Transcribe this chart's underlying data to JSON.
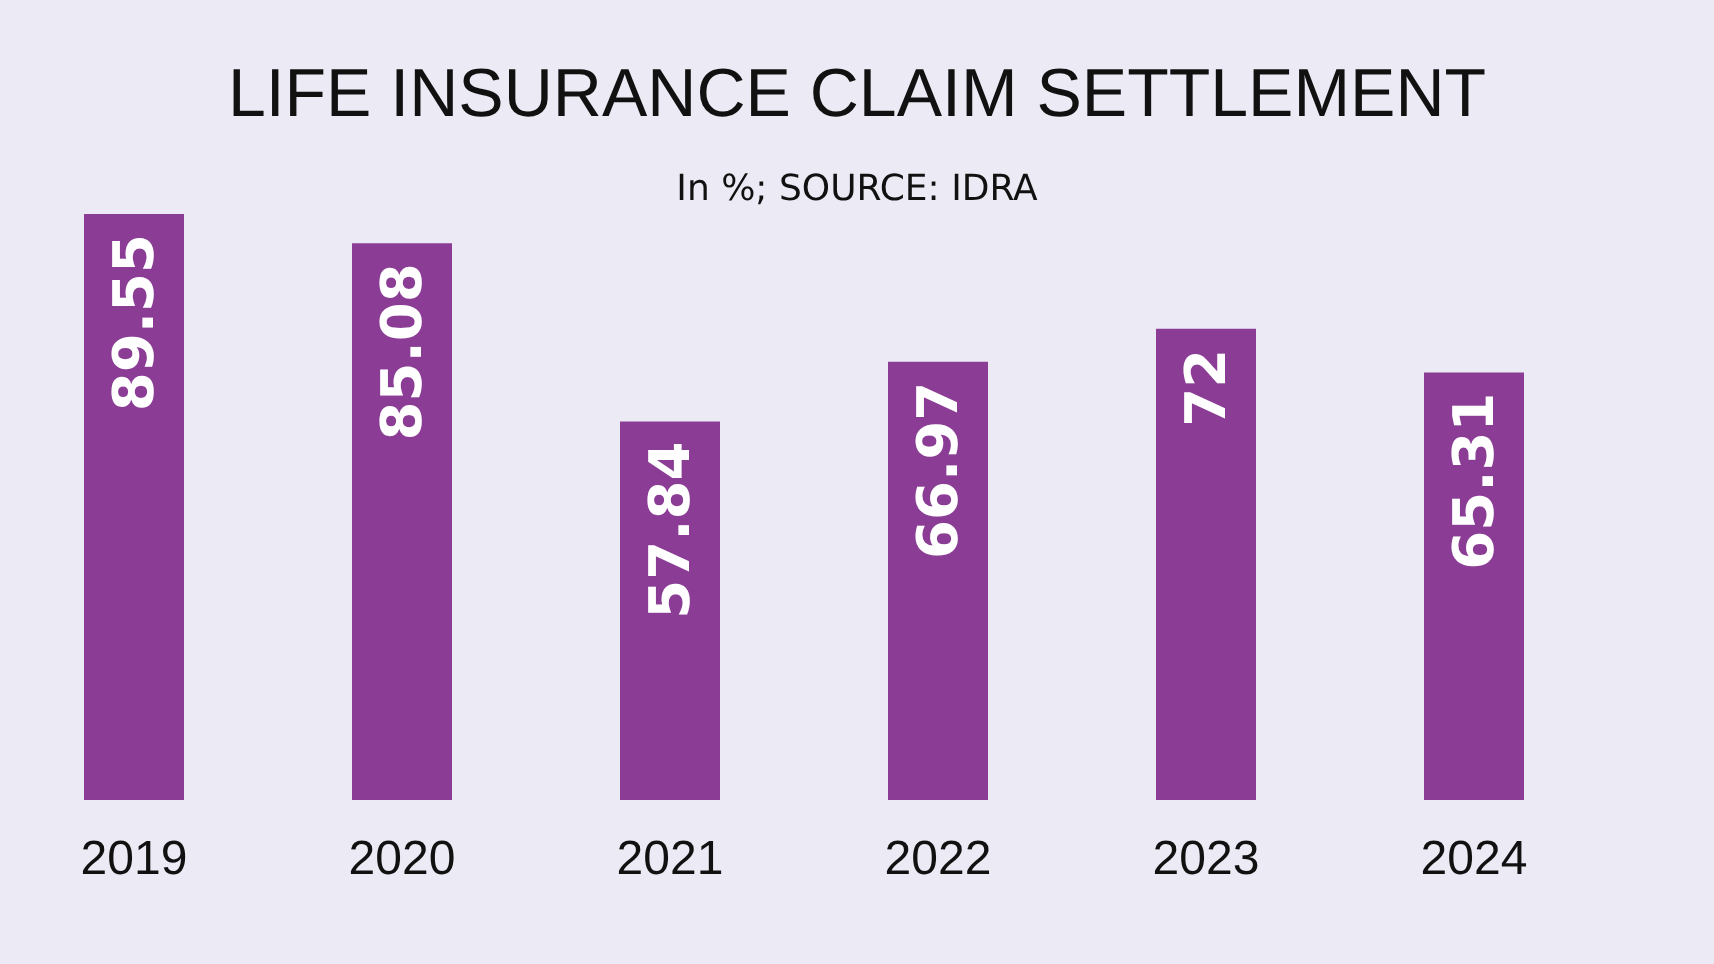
{
  "chart_data": {
    "type": "bar",
    "title": "LIFE INSURANCE CLAIM SETTLEMENT",
    "subtitle": "In %; SOURCE: IDRA",
    "categories": [
      "2019",
      "2020",
      "2021",
      "2022",
      "2023",
      "2024"
    ],
    "values": [
      89.55,
      85.08,
      57.84,
      66.97,
      72,
      65.31
    ],
    "color": "#8b3d96",
    "data_labels": true,
    "tick_labels": "x"
  }
}
